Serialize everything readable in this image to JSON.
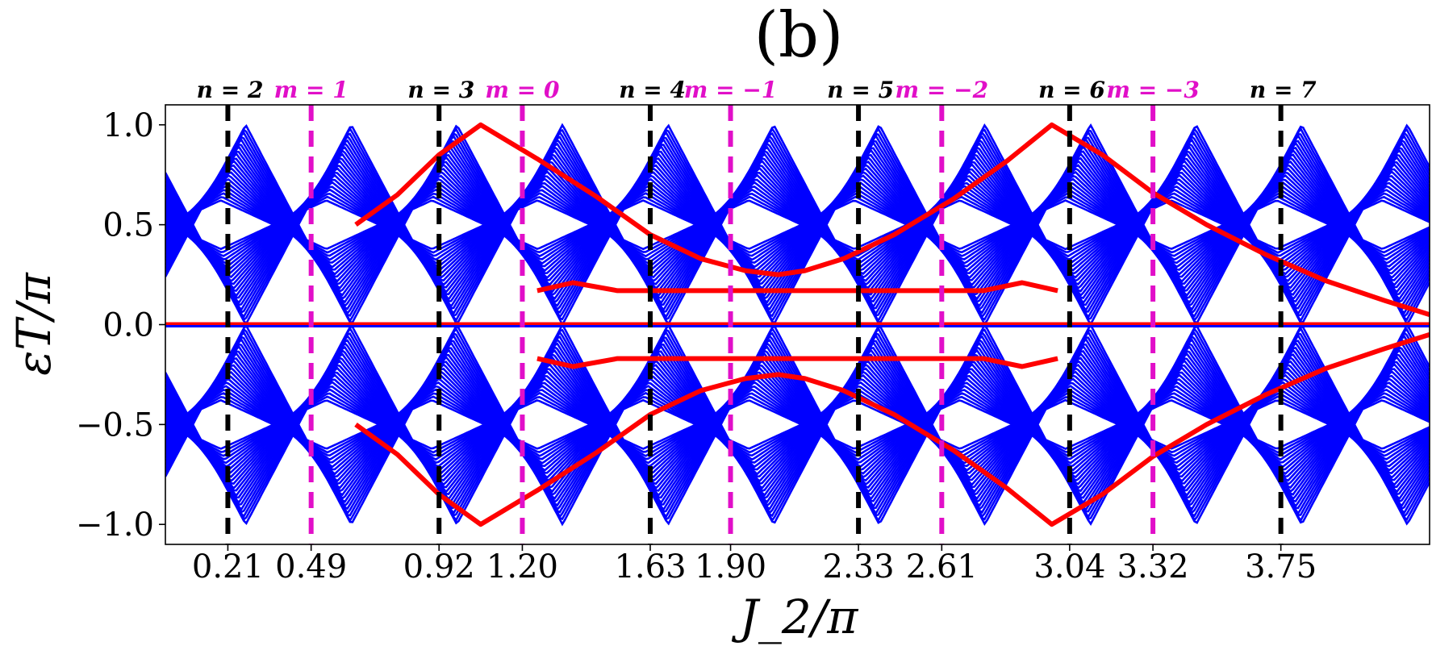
{
  "chart_data": {
    "type": "line",
    "title": "(b)",
    "xlabel": "J_2/π",
    "ylabel": "εT/π",
    "xlim": [
      0.0,
      4.25
    ],
    "ylim": [
      -1.1,
      1.1
    ],
    "x_ticks": [
      0.21,
      0.49,
      0.92,
      1.2,
      1.63,
      1.9,
      2.33,
      2.61,
      3.04,
      3.32,
      3.75
    ],
    "x_tick_labels": [
      "0.21",
      "0.49",
      "0.92",
      "1.20",
      "1.63",
      "1.90",
      "2.33",
      "2.61",
      "3.04",
      "3.32",
      "3.75"
    ],
    "y_ticks": [
      1.0,
      0.5,
      0.0,
      -0.5,
      -1.0
    ],
    "y_tick_labels": [
      "1.0",
      "0.5",
      "0.0",
      "−0.5",
      "−1.0"
    ],
    "vertical_lines": [
      {
        "x": 0.21,
        "label": "n = 2",
        "color": "#000000"
      },
      {
        "x": 0.49,
        "label": "m = 1",
        "color": "#e10fc8"
      },
      {
        "x": 0.92,
        "label": "n = 3",
        "color": "#000000"
      },
      {
        "x": 1.2,
        "label": "m = 0",
        "color": "#e10fc8"
      },
      {
        "x": 1.63,
        "label": "n = 4",
        "color": "#000000"
      },
      {
        "x": 1.9,
        "label": "m = −1",
        "color": "#e10fc8"
      },
      {
        "x": 2.33,
        "label": "n = 5",
        "color": "#000000"
      },
      {
        "x": 2.61,
        "label": "m = −2",
        "color": "#e10fc8"
      },
      {
        "x": 3.04,
        "label": "n = 6",
        "color": "#000000"
      },
      {
        "x": 3.32,
        "label": "m = −3",
        "color": "#e10fc8"
      },
      {
        "x": 3.75,
        "label": "n = 7",
        "color": "#000000"
      }
    ],
    "bulk_band": {
      "color": "#0000ff",
      "offset_at_zero": 0.3,
      "period": 0.71,
      "n_lines": 22,
      "spacing": 0.018
    },
    "series": [
      {
        "name": "edge-state-upper",
        "color": "#ff0000",
        "x": [
          0.64,
          0.78,
          0.92,
          1.06,
          1.25,
          1.45,
          1.63,
          1.8,
          1.95,
          2.06,
          2.15,
          2.28,
          2.45,
          2.65,
          2.83,
          2.98,
          3.15,
          3.32,
          3.5,
          3.7,
          3.9,
          4.1,
          4.25
        ],
        "y": [
          0.5,
          0.65,
          0.85,
          1.0,
          0.83,
          0.64,
          0.45,
          0.33,
          0.27,
          0.25,
          0.27,
          0.33,
          0.45,
          0.63,
          0.82,
          1.0,
          0.85,
          0.66,
          0.5,
          0.35,
          0.22,
          0.12,
          0.05
        ]
      },
      {
        "name": "edge-state-lower",
        "color": "#ff0000",
        "x": [
          0.64,
          0.78,
          0.92,
          1.06,
          1.25,
          1.45,
          1.63,
          1.8,
          1.95,
          2.06,
          2.15,
          2.28,
          2.45,
          2.65,
          2.83,
          2.98,
          3.15,
          3.32,
          3.5,
          3.7,
          3.9,
          4.1,
          4.25
        ],
        "y": [
          -0.5,
          -0.65,
          -0.85,
          -1.0,
          -0.83,
          -0.64,
          -0.45,
          -0.33,
          -0.27,
          -0.25,
          -0.27,
          -0.33,
          -0.45,
          -0.63,
          -0.82,
          -1.0,
          -0.85,
          -0.66,
          -0.5,
          -0.35,
          -0.22,
          -0.12,
          -0.05
        ]
      },
      {
        "name": "edge-bump-upper",
        "color": "#ff0000",
        "x": [
          1.25,
          1.37,
          1.52,
          2.75,
          2.88,
          3.0
        ],
        "y": [
          0.17,
          0.21,
          0.17,
          0.17,
          0.21,
          0.17
        ]
      },
      {
        "name": "edge-bump-lower",
        "color": "#ff0000",
        "x": [
          1.25,
          1.37,
          1.52,
          2.75,
          2.88,
          3.0
        ],
        "y": [
          -0.17,
          -0.21,
          -0.17,
          -0.17,
          -0.21,
          -0.17
        ]
      },
      {
        "name": "zero-mode-line",
        "color": "#ff0000",
        "x": [
          0.0,
          4.25
        ],
        "y": [
          0.0,
          0.0
        ]
      }
    ]
  }
}
